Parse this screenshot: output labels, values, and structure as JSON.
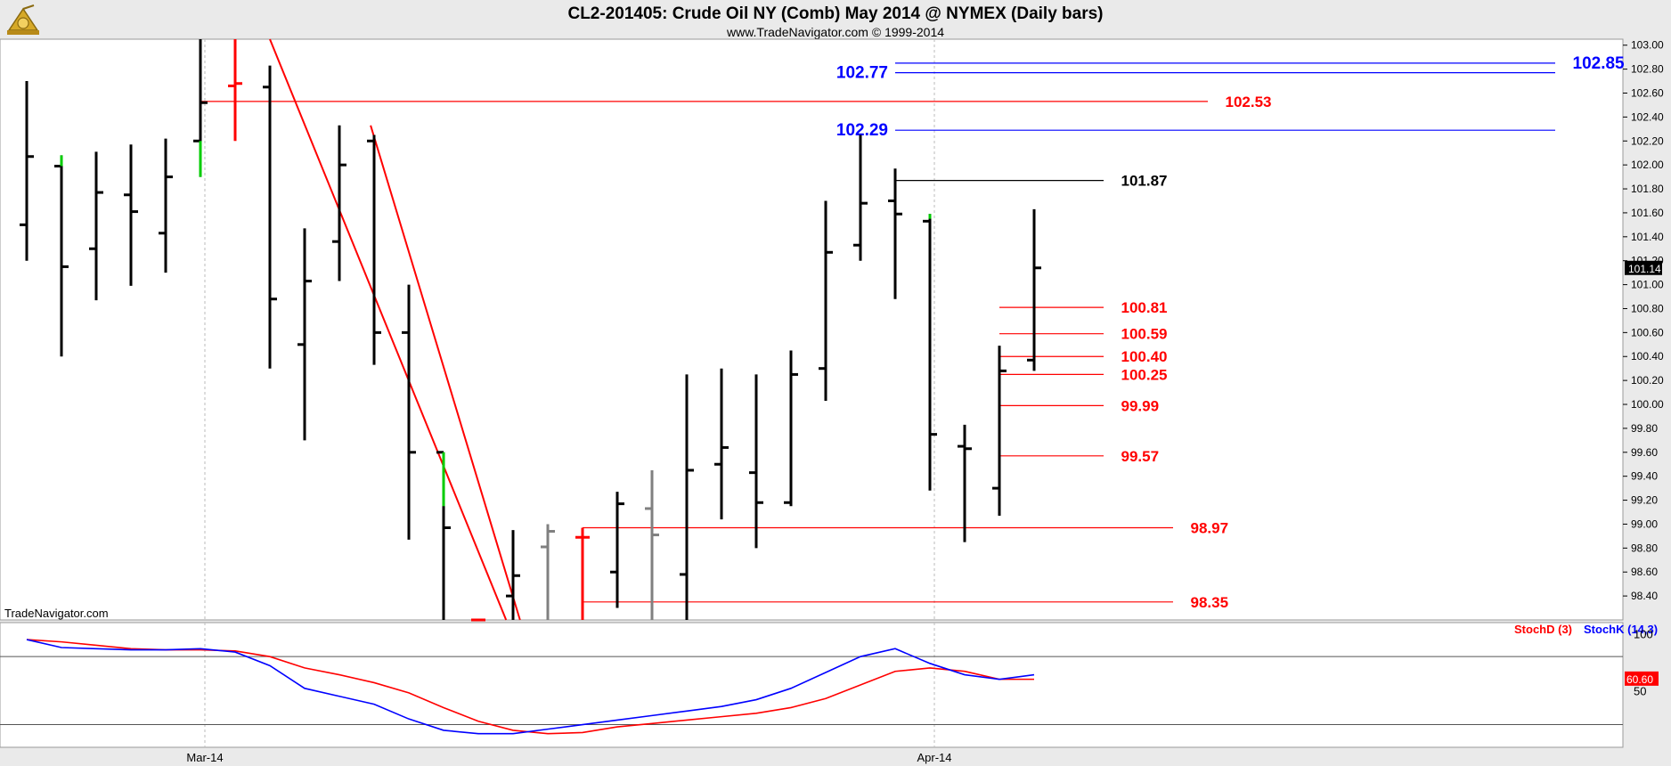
{
  "header": {
    "title": "CL2-201405:  Crude Oil NY (Comb) May 2014 @ NYMEX  (Daily bars)",
    "subtitle": "www.TradeNavigator.com © 1999-2014",
    "watermark": "TradeNavigator.com",
    "logo_icon": "sextant-logo-icon"
  },
  "colors": {
    "bar": "#000000",
    "up_marker": "#00cc00",
    "red": "#ff0000",
    "blue": "#0000ff",
    "gray": "#808080",
    "price_tag_bg": "#000000",
    "stoch_tag_bg": "#ff0000"
  },
  "chart_data": [
    {
      "type": "ohlc",
      "title": "CL2-201405:  Crude Oil NY (Comb) May 2014 @ NYMEX  (Daily bars)",
      "ylim": [
        98.2,
        103.05
      ],
      "y_ticks": [
        "103.00",
        "102.80",
        "102.60",
        "102.40",
        "102.20",
        "102.00",
        "101.80",
        "101.60",
        "101.40",
        "101.20",
        "101.00",
        "100.80",
        "100.60",
        "100.40",
        "100.20",
        "100.00",
        "99.80",
        "99.60",
        "99.40",
        "99.20",
        "99.00",
        "98.80",
        "98.60",
        "98.40"
      ],
      "x_labels": [
        {
          "label": "Mar-14",
          "bar": 5
        },
        {
          "label": "Apr-14",
          "bar": 26
        }
      ],
      "last_price": "101.14",
      "bars": [
        {
          "o": 101.5,
          "h": 102.7,
          "l": 101.2,
          "c": 102.07,
          "color": "black"
        },
        {
          "o": 101.99,
          "h": 102.08,
          "l": 100.4,
          "c": 101.15,
          "color": "black"
        },
        {
          "o": 101.3,
          "h": 102.11,
          "l": 100.87,
          "c": 101.77,
          "color": "black"
        },
        {
          "o": 101.75,
          "h": 102.17,
          "l": 100.99,
          "c": 101.61,
          "color": "black"
        },
        {
          "o": 101.43,
          "h": 102.22,
          "l": 101.1,
          "c": 101.9,
          "color": "black"
        },
        {
          "o": 102.2,
          "h": 103.05,
          "l": 101.9,
          "c": 102.52,
          "color": "black"
        },
        {
          "o": 102.66,
          "h": 103.05,
          "l": 102.2,
          "c": 102.68,
          "color": "red"
        },
        {
          "o": 102.65,
          "h": 102.83,
          "l": 100.3,
          "c": 100.88,
          "color": "black"
        },
        {
          "o": 100.5,
          "h": 101.47,
          "l": 99.7,
          "c": 101.03,
          "color": "black"
        },
        {
          "o": 101.36,
          "h": 102.33,
          "l": 101.03,
          "c": 102.0,
          "color": "black"
        },
        {
          "o": 102.2,
          "h": 102.25,
          "l": 100.33,
          "c": 100.6,
          "color": "black"
        },
        {
          "o": 100.6,
          "h": 101.0,
          "l": 98.87,
          "c": 99.6,
          "color": "black"
        },
        {
          "o": 99.6,
          "h": 99.6,
          "l": 98.2,
          "c": 98.97,
          "color": "black"
        },
        {
          "o": 98.2,
          "h": 98.2,
          "l": 98.2,
          "c": 98.2,
          "color": "red"
        },
        {
          "o": 98.4,
          "h": 98.95,
          "l": 98.2,
          "c": 98.57,
          "color": "black"
        },
        {
          "o": 98.81,
          "h": 99.0,
          "l": 98.2,
          "c": 98.94,
          "color": "gray"
        },
        {
          "o": 98.89,
          "h": 98.97,
          "l": 98.2,
          "c": 98.89,
          "color": "red"
        },
        {
          "o": 98.6,
          "h": 99.27,
          "l": 98.3,
          "c": 99.17,
          "color": "black"
        },
        {
          "o": 99.13,
          "h": 99.45,
          "l": 98.2,
          "c": 98.91,
          "color": "gray"
        },
        {
          "o": 98.58,
          "h": 100.25,
          "l": 98.2,
          "c": 99.45,
          "color": "black"
        },
        {
          "o": 99.5,
          "h": 100.3,
          "l": 99.04,
          "c": 99.64,
          "color": "black"
        },
        {
          "o": 99.43,
          "h": 100.25,
          "l": 98.8,
          "c": 99.18,
          "color": "black"
        },
        {
          "o": 99.18,
          "h": 100.45,
          "l": 99.15,
          "c": 100.25,
          "color": "black"
        },
        {
          "o": 100.3,
          "h": 101.7,
          "l": 100.03,
          "c": 101.27,
          "color": "black"
        },
        {
          "o": 101.33,
          "h": 102.25,
          "l": 101.2,
          "c": 101.68,
          "color": "black"
        },
        {
          "o": 101.7,
          "h": 101.97,
          "l": 100.88,
          "c": 101.59,
          "color": "black"
        },
        {
          "o": 101.53,
          "h": 101.59,
          "l": 99.28,
          "c": 99.75,
          "color": "black"
        },
        {
          "o": 99.65,
          "h": 99.83,
          "l": 98.85,
          "c": 99.63,
          "color": "black"
        },
        {
          "o": 99.3,
          "h": 100.49,
          "l": 99.07,
          "c": 100.28,
          "color": "black"
        },
        {
          "o": 100.37,
          "h": 101.63,
          "l": 100.28,
          "c": 101.14,
          "color": "black"
        }
      ],
      "up_markers": [
        {
          "bar": 1,
          "from": 102.08,
          "to": 101.99
        },
        {
          "bar": 5,
          "from": 102.2,
          "to": 101.9
        },
        {
          "bar": 12,
          "from": 99.6,
          "to": 99.15
        },
        {
          "bar": 26,
          "from": 101.59,
          "to": 101.55
        }
      ],
      "trend_lines": [
        {
          "from_bar": 7,
          "from_price": 103.05,
          "to_bar": 13.8,
          "to_price": 98.2
        },
        {
          "from_bar": 9.9,
          "from_price": 102.33,
          "to_bar": 14.2,
          "to_price": 98.2
        }
      ],
      "levels": [
        {
          "label": "102.85",
          "value": 102.85,
          "from_bar": 25,
          "to_bar": 44,
          "label_bar": 44.5,
          "color": "blue"
        },
        {
          "label": "102.77",
          "value": 102.77,
          "from_bar": 25,
          "to_bar": 44,
          "label_bar": 23.5,
          "color": "blue"
        },
        {
          "label": "102.53",
          "value": 102.53,
          "from_bar": 5,
          "to_bar": 34,
          "label_bar": 34.5,
          "color": "red"
        },
        {
          "label": "102.29",
          "value": 102.29,
          "from_bar": 25,
          "to_bar": 44,
          "label_bar": 23.5,
          "color": "blue"
        },
        {
          "label": "101.87",
          "value": 101.87,
          "from_bar": 25,
          "to_bar": 31,
          "label_bar": 31.5,
          "color": "black"
        },
        {
          "label": "100.81",
          "value": 100.81,
          "from_bar": 28,
          "to_bar": 31,
          "label_bar": 31.5,
          "color": "red"
        },
        {
          "label": "100.59",
          "value": 100.59,
          "from_bar": 28,
          "to_bar": 31,
          "label_bar": 31.5,
          "color": "red"
        },
        {
          "label": "100.40",
          "value": 100.4,
          "from_bar": 28,
          "to_bar": 31,
          "label_bar": 31.5,
          "color": "red"
        },
        {
          "label": "100.25",
          "value": 100.25,
          "from_bar": 28,
          "to_bar": 31,
          "label_bar": 31.5,
          "color": "red"
        },
        {
          "label": "99.99",
          "value": 99.99,
          "from_bar": 28,
          "to_bar": 31,
          "label_bar": 31.5,
          "color": "red"
        },
        {
          "label": "99.57",
          "value": 99.57,
          "from_bar": 28,
          "to_bar": 31,
          "label_bar": 31.5,
          "color": "red"
        },
        {
          "label": "98.97",
          "value": 98.97,
          "from_bar": 16,
          "to_bar": 33,
          "label_bar": 33.5,
          "color": "red"
        },
        {
          "label": "98.35",
          "value": 98.35,
          "from_bar": 16,
          "to_bar": 33,
          "label_bar": 33.5,
          "color": "red"
        }
      ]
    },
    {
      "type": "line",
      "ylim": [
        0,
        110
      ],
      "y_ticks": [
        "100",
        "50"
      ],
      "reference_lines": [
        80,
        20
      ],
      "last_value": "60.60",
      "series": [
        {
          "name": "StochD (3)",
          "color": "red",
          "values": [
            95,
            93,
            90,
            87,
            86,
            86,
            85,
            80,
            70,
            64,
            57,
            48,
            35,
            23,
            15,
            12,
            13,
            18,
            21,
            24,
            27,
            30,
            35,
            43,
            55,
            67,
            70,
            67,
            60,
            60
          ]
        },
        {
          "name": "StochK (14,3)",
          "color": "blue",
          "values": [
            95,
            88,
            87,
            86,
            86,
            87,
            84,
            72,
            52,
            45,
            38,
            25,
            15,
            12,
            12,
            16,
            20,
            24,
            28,
            32,
            36,
            42,
            52,
            66,
            80,
            87,
            74,
            64,
            60,
            64
          ]
        }
      ]
    }
  ]
}
